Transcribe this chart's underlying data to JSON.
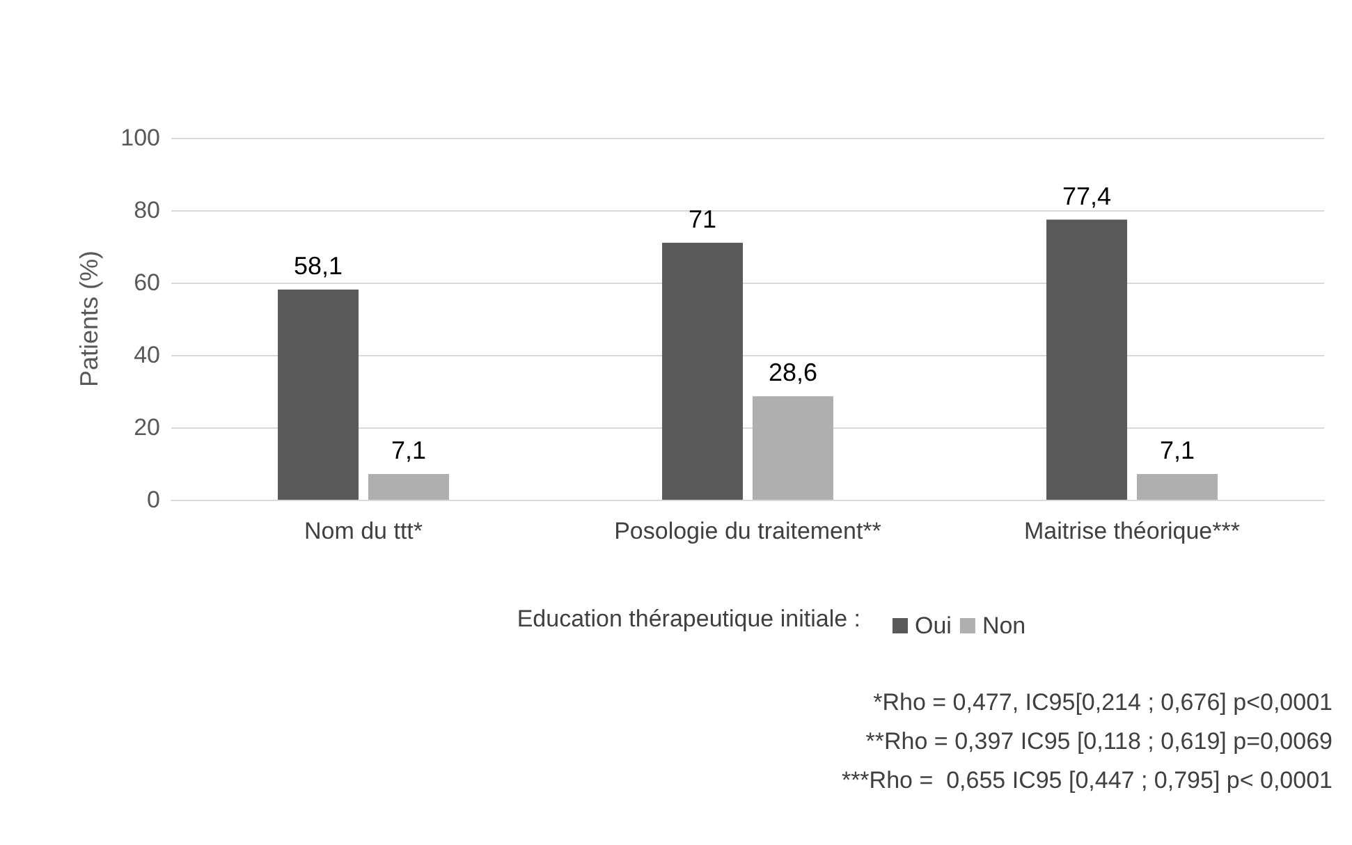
{
  "chart_data": {
    "type": "bar",
    "ylabel": "Patients (%)",
    "categories": [
      "Nom du ttt*",
      "Posologie du traitement**",
      "Maitrise théorique***"
    ],
    "series": [
      {
        "name": "Oui",
        "color": "#595959",
        "values": [
          58.1,
          71,
          77.4
        ],
        "value_labels": [
          "58,1",
          "71",
          "77,4"
        ]
      },
      {
        "name": "Non",
        "color": "#afafaf",
        "values": [
          7.1,
          28.6,
          7.1
        ],
        "value_labels": [
          "7,1",
          "28,6",
          "7,1"
        ]
      }
    ],
    "ylim": [
      0,
      100
    ],
    "yticks": [
      0,
      20,
      40,
      60,
      80,
      100
    ],
    "grid": "y",
    "legend": "bottom",
    "legend_title": "Education thérapeutique initiale :",
    "annotations": [
      "*Rho = 0,477, IC95[0,214 ; 0,676] p<0,0001",
      "**Rho = 0,397 IC95 [0,118 ; 0,619] p=0,0069",
      "***Rho =  0,655 IC95 [0,447 ; 0,795] p< 0,0001"
    ]
  }
}
